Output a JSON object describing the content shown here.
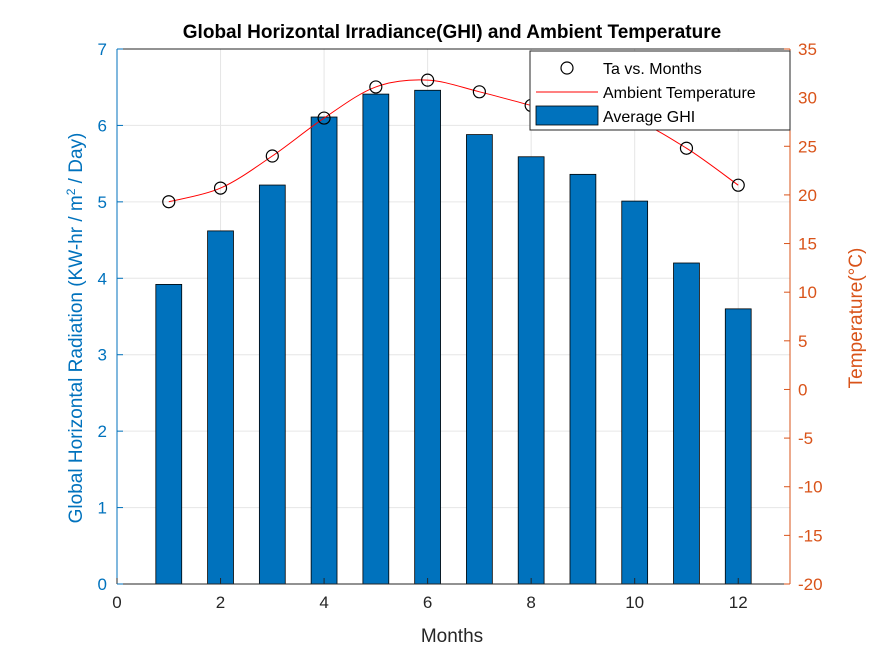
{
  "chart_data": {
    "type": "bar",
    "title": "Global Horizontal Irradiance(GHI) and Ambient Temperature",
    "xlabel": "Months",
    "ylabel_left_parts": [
      "Global Horizontal Radiation (KW-hr / m",
      "2",
      " / Day)"
    ],
    "ylabel_right": "Temperature(°C)",
    "xlim": [
      0,
      13
    ],
    "ylim_left": [
      0,
      7
    ],
    "ylim_right": [
      -20,
      35
    ],
    "x_ticks": [
      0,
      2,
      4,
      6,
      8,
      10,
      12
    ],
    "y_left_ticks": [
      0,
      1,
      2,
      3,
      4,
      5,
      6,
      7
    ],
    "y_right_ticks": [
      -20,
      -15,
      -10,
      -5,
      0,
      5,
      10,
      15,
      20,
      25,
      30,
      35
    ],
    "grid": true,
    "legend_position": "top-right",
    "series": [
      {
        "name": "Average GHI",
        "type": "bar",
        "axis": "left",
        "x": [
          1,
          2,
          3,
          4,
          5,
          6,
          7,
          8,
          9,
          10,
          11,
          12
        ],
        "values": [
          3.92,
          4.62,
          5.22,
          6.11,
          6.41,
          6.46,
          5.88,
          5.59,
          5.36,
          5.01,
          4.2,
          3.6
        ],
        "color": "#0072BD"
      },
      {
        "name": "Ta vs. Months",
        "type": "scatter",
        "axis": "right",
        "x": [
          1,
          2,
          3,
          4,
          5,
          6,
          7,
          8,
          9,
          10,
          11,
          12
        ],
        "values": [
          19.3,
          20.7,
          24.0,
          27.9,
          31.1,
          31.8,
          30.6,
          29.2,
          27.9,
          27.6,
          24.8,
          21.0
        ],
        "marker": "open-circle",
        "color": "#000000"
      },
      {
        "name": "Ambient Temperature",
        "type": "line",
        "axis": "right",
        "smooth": true,
        "x": [
          1,
          2,
          3,
          4,
          5,
          6,
          7,
          8,
          9,
          10,
          11,
          12
        ],
        "values": [
          19.3,
          20.7,
          24.0,
          27.9,
          31.1,
          31.8,
          30.6,
          29.2,
          27.9,
          27.6,
          24.8,
          21.0
        ],
        "color": "#ff0000"
      }
    ],
    "colors": {
      "left_axis": "#0072BD",
      "right_axis": "#D95319",
      "bar_edge": "#000000",
      "grid": "#e6e6e6"
    }
  }
}
